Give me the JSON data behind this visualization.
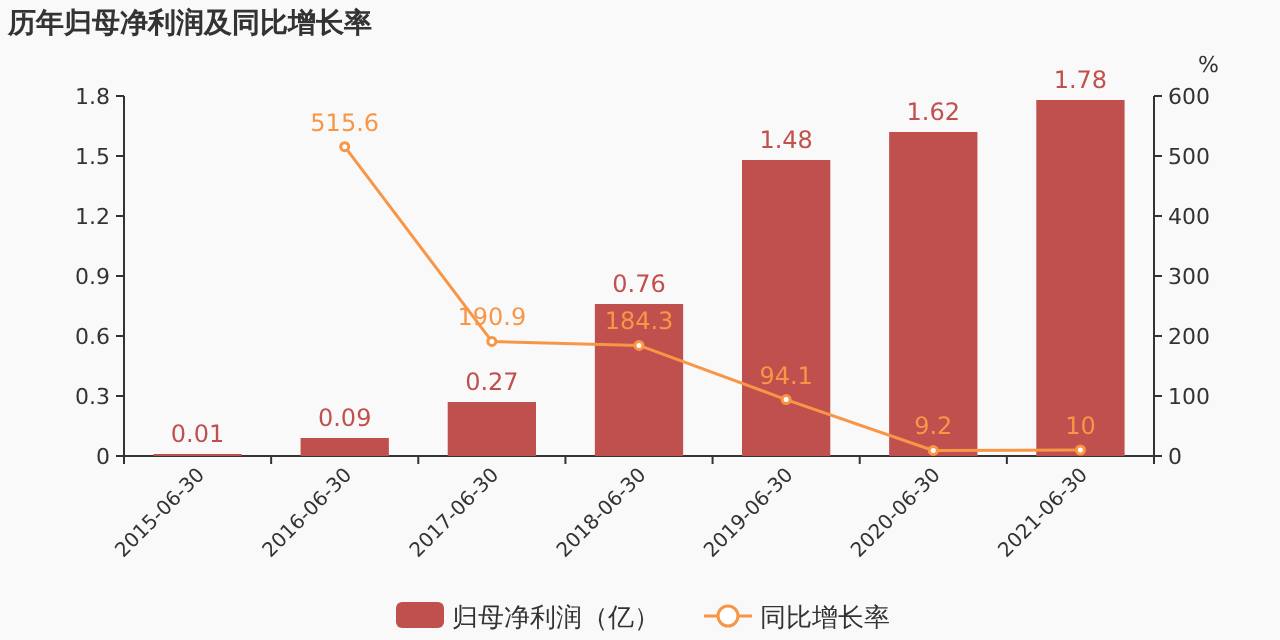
{
  "chart_data": {
    "type": "bar",
    "title": "历年归母净利润及同比增长率",
    "y2label": "%",
    "categories": [
      "2015-06-30",
      "2016-06-30",
      "2017-06-30",
      "2018-06-30",
      "2019-06-30",
      "2020-06-30",
      "2021-06-30"
    ],
    "series": [
      {
        "name": "归母净利润（亿）",
        "color": "#c0504d",
        "values": [
          0.01,
          0.09,
          0.27,
          0.76,
          1.48,
          1.62,
          1.78
        ]
      },
      {
        "name": "同比增长率",
        "type": "line",
        "axis": "y2",
        "color": "#f79646",
        "marker": "circle",
        "values": [
          null,
          515.6,
          190.9,
          184.3,
          94.1,
          9.2,
          10
        ]
      }
    ],
    "data_labels": true,
    "ylim": [
      0,
      1.8
    ],
    "yticks": [
      0,
      0.3,
      0.6,
      0.9,
      1.2,
      1.5,
      1.8
    ],
    "y2lim": [
      0,
      600
    ],
    "y2ticks": [
      0,
      100,
      200,
      300,
      400,
      500,
      600
    ],
    "grid": false,
    "legend": "bottom"
  }
}
